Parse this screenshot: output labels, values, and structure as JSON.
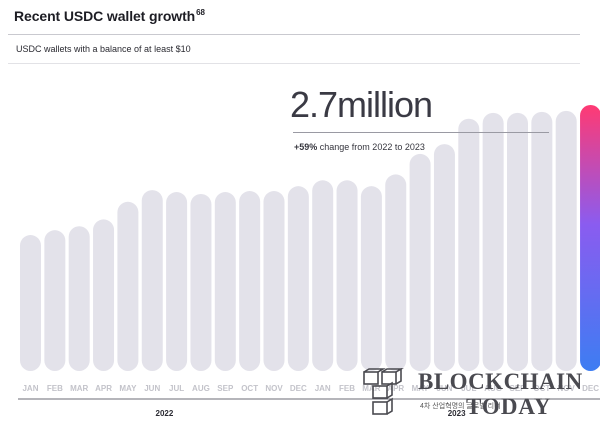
{
  "header": {
    "title": "Recent USDC wallet growth",
    "footnote": "68",
    "subtitle": "USDC wallets with a balance of at least $10"
  },
  "callout": {
    "value": "2.7million",
    "change_value": "+59%",
    "change_text": " change from 2022 to 2023"
  },
  "watermark": {
    "line1": "BLOCKCHAIN",
    "line2": "TODAY",
    "tagline": "4차 산업혁명의 글로벌 리더"
  },
  "colors": {
    "bar": "#e3e2ea",
    "highlight_top": "#ff3a73",
    "highlight_mid": "#8a5cf0",
    "highlight_bottom": "#3d7df2",
    "label": "#c3c3ca",
    "year": "#2b2b33"
  },
  "chart_data": {
    "type": "bar",
    "title": "Recent USDC wallet growth",
    "subtitle": "USDC wallets with a balance of at least $10",
    "categories": [
      "JAN",
      "FEB",
      "MAR",
      "APR",
      "MAY",
      "JUN",
      "JUL",
      "AUG",
      "SEP",
      "OCT",
      "NOV",
      "DEC",
      "JAN",
      "FEB",
      "MAR",
      "APR",
      "MAY",
      "JUN",
      "JUL",
      "AUG",
      "SEP",
      "OCT",
      "NOV",
      "DEC"
    ],
    "groups": [
      {
        "label": "2022",
        "start": 0,
        "end": 11
      },
      {
        "label": "2023",
        "start": 12,
        "end": 23
      }
    ],
    "values": [
      1.37,
      1.42,
      1.46,
      1.53,
      1.71,
      1.83,
      1.81,
      1.79,
      1.81,
      1.82,
      1.82,
      1.87,
      1.93,
      1.93,
      1.87,
      1.99,
      2.2,
      2.3,
      2.56,
      2.62,
      2.62,
      2.63,
      2.64,
      2.7
    ],
    "highlight_index": 23,
    "ylim": [
      0,
      2.8
    ],
    "grid": false,
    "legend": "none",
    "xlabel": "",
    "ylabel": ""
  }
}
